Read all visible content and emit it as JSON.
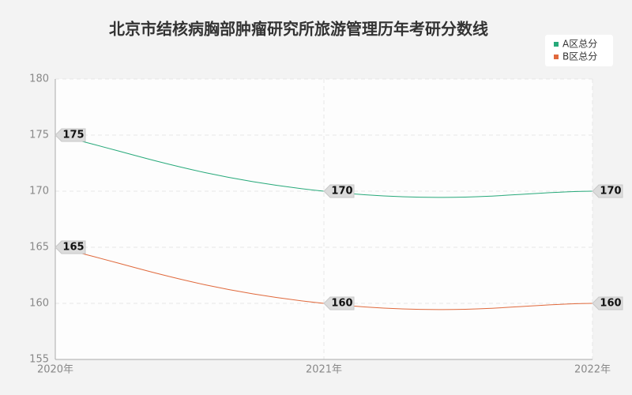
{
  "chart_data": {
    "type": "line",
    "title": "北京市结核病胸部肿瘤研究所旅游管理历年考研分数线",
    "categories": [
      "2020年",
      "2021年",
      "2022年"
    ],
    "series": [
      {
        "name": "A区总分",
        "color": "#27a97a",
        "values": [
          175,
          170,
          170
        ]
      },
      {
        "name": "B区总分",
        "color": "#e0693c",
        "values": [
          165,
          160,
          160
        ]
      }
    ],
    "ylim": [
      155,
      180
    ],
    "yticks": [
      155,
      160,
      165,
      170,
      175,
      180
    ],
    "grid": true,
    "smooth": true,
    "legend": "top-right"
  }
}
